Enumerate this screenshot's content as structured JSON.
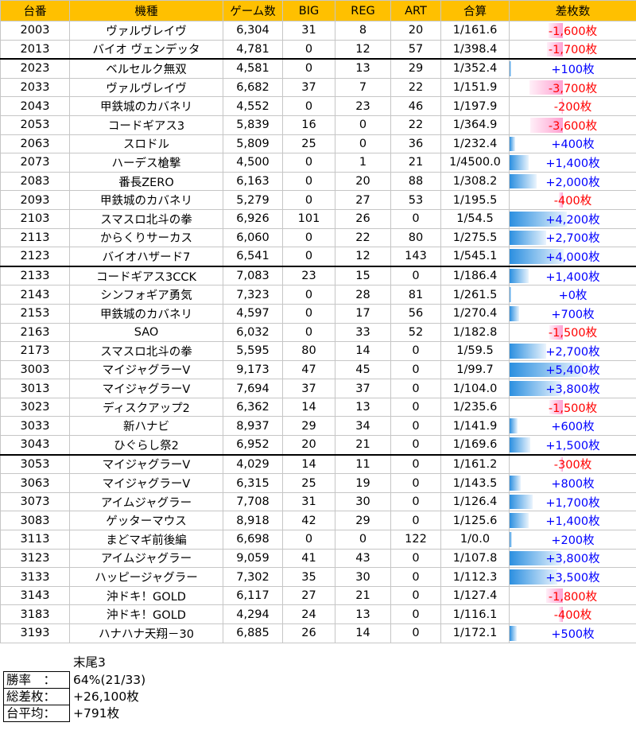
{
  "table": {
    "headers": [
      "台番",
      "機種",
      "ゲーム数",
      "BIG",
      "REG",
      "ART",
      "合算",
      "差枚数"
    ],
    "rows": [
      {
        "no": "2003",
        "machine": "ヴァルヴレイヴ",
        "games": "6,304",
        "big": "31",
        "reg": "8",
        "art": "20",
        "ratio": "1/161.6",
        "diff": "-1,600枚",
        "diff_value": -1600
      },
      {
        "no": "2013",
        "machine": "バイオ ヴェンデッタ",
        "games": "4,781",
        "big": "0",
        "reg": "12",
        "art": "57",
        "ratio": "1/398.4",
        "diff": "-1,700枚",
        "diff_value": -1700
      },
      {
        "no": "2023",
        "machine": "ベルセルク無双",
        "games": "4,581",
        "big": "0",
        "reg": "13",
        "art": "29",
        "ratio": "1/352.4",
        "diff": "+100枚",
        "diff_value": 100
      },
      {
        "no": "2033",
        "machine": "ヴァルヴレイヴ",
        "games": "6,682",
        "big": "37",
        "reg": "7",
        "art": "22",
        "ratio": "1/151.9",
        "diff": "-3,700枚",
        "diff_value": -3700
      },
      {
        "no": "2043",
        "machine": "甲鉄城のカバネリ",
        "games": "4,552",
        "big": "0",
        "reg": "23",
        "art": "46",
        "ratio": "1/197.9",
        "diff": "-200枚",
        "diff_value": -200
      },
      {
        "no": "2053",
        "machine": "コードギアス3",
        "games": "5,839",
        "big": "16",
        "reg": "0",
        "art": "22",
        "ratio": "1/364.9",
        "diff": "-3,600枚",
        "diff_value": -3600
      },
      {
        "no": "2063",
        "machine": "スロドル",
        "games": "5,809",
        "big": "25",
        "reg": "0",
        "art": "36",
        "ratio": "1/232.4",
        "diff": "+400枚",
        "diff_value": 400
      },
      {
        "no": "2073",
        "machine": "ハーデス槍撃",
        "games": "4,500",
        "big": "0",
        "reg": "1",
        "art": "21",
        "ratio": "1/4500.0",
        "diff": "+1,400枚",
        "diff_value": 1400
      },
      {
        "no": "2083",
        "machine": "番長ZERO",
        "games": "6,163",
        "big": "0",
        "reg": "20",
        "art": "88",
        "ratio": "1/308.2",
        "diff": "+2,000枚",
        "diff_value": 2000
      },
      {
        "no": "2093",
        "machine": "甲鉄城のカバネリ",
        "games": "5,279",
        "big": "0",
        "reg": "27",
        "art": "53",
        "ratio": "1/195.5",
        "diff": "-400枚",
        "diff_value": -400
      },
      {
        "no": "2103",
        "machine": "スマスロ北斗の拳",
        "games": "6,926",
        "big": "101",
        "reg": "26",
        "art": "0",
        "ratio": "1/54.5",
        "diff": "+4,200枚",
        "diff_value": 4200
      },
      {
        "no": "2113",
        "machine": "からくりサーカス",
        "games": "6,060",
        "big": "0",
        "reg": "22",
        "art": "80",
        "ratio": "1/275.5",
        "diff": "+2,700枚",
        "diff_value": 2700
      },
      {
        "no": "2123",
        "machine": "バイオハザード7",
        "games": "6,541",
        "big": "0",
        "reg": "12",
        "art": "143",
        "ratio": "1/545.1",
        "diff": "+4,000枚",
        "diff_value": 4000
      },
      {
        "no": "2133",
        "machine": "コードギアス3CCK",
        "games": "7,083",
        "big": "23",
        "reg": "15",
        "art": "0",
        "ratio": "1/186.4",
        "diff": "+1,400枚",
        "diff_value": 1400
      },
      {
        "no": "2143",
        "machine": "シンフォギア勇気",
        "games": "7,323",
        "big": "0",
        "reg": "28",
        "art": "81",
        "ratio": "1/261.5",
        "diff": "+0枚",
        "diff_value": 0
      },
      {
        "no": "2153",
        "machine": "甲鉄城のカバネリ",
        "games": "4,597",
        "big": "0",
        "reg": "17",
        "art": "56",
        "ratio": "1/270.4",
        "diff": "+700枚",
        "diff_value": 700
      },
      {
        "no": "2163",
        "machine": "SAO",
        "games": "6,032",
        "big": "0",
        "reg": "33",
        "art": "52",
        "ratio": "1/182.8",
        "diff": "-1,500枚",
        "diff_value": -1500
      },
      {
        "no": "2173",
        "machine": "スマスロ北斗の拳",
        "games": "5,595",
        "big": "80",
        "reg": "14",
        "art": "0",
        "ratio": "1/59.5",
        "diff": "+2,700枚",
        "diff_value": 2700
      },
      {
        "no": "3003",
        "machine": "マイジャグラーV",
        "games": "9,173",
        "big": "47",
        "reg": "45",
        "art": "0",
        "ratio": "1/99.7",
        "diff": "+5,400枚",
        "diff_value": 5400
      },
      {
        "no": "3013",
        "machine": "マイジャグラーV",
        "games": "7,694",
        "big": "37",
        "reg": "37",
        "art": "0",
        "ratio": "1/104.0",
        "diff": "+3,800枚",
        "diff_value": 3800
      },
      {
        "no": "3023",
        "machine": "ディスクアップ2",
        "games": "6,362",
        "big": "14",
        "reg": "13",
        "art": "0",
        "ratio": "1/235.6",
        "diff": "-1,500枚",
        "diff_value": -1500
      },
      {
        "no": "3033",
        "machine": "新ハナビ",
        "games": "8,937",
        "big": "29",
        "reg": "34",
        "art": "0",
        "ratio": "1/141.9",
        "diff": "+600枚",
        "diff_value": 600
      },
      {
        "no": "3043",
        "machine": "ひぐらし祭2",
        "games": "6,952",
        "big": "20",
        "reg": "21",
        "art": "0",
        "ratio": "1/169.6",
        "diff": "+1,500枚",
        "diff_value": 1500
      },
      {
        "no": "3053",
        "machine": "マイジャグラーV",
        "games": "4,029",
        "big": "14",
        "reg": "11",
        "art": "0",
        "ratio": "1/161.2",
        "diff": "-300枚",
        "diff_value": -300
      },
      {
        "no": "3063",
        "machine": "マイジャグラーV",
        "games": "6,315",
        "big": "25",
        "reg": "19",
        "art": "0",
        "ratio": "1/143.5",
        "diff": "+800枚",
        "diff_value": 800
      },
      {
        "no": "3073",
        "machine": "アイムジャグラー",
        "games": "7,708",
        "big": "31",
        "reg": "30",
        "art": "0",
        "ratio": "1/126.4",
        "diff": "+1,700枚",
        "diff_value": 1700
      },
      {
        "no": "3083",
        "machine": "ゲッターマウス",
        "games": "8,918",
        "big": "42",
        "reg": "29",
        "art": "0",
        "ratio": "1/125.6",
        "diff": "+1,400枚",
        "diff_value": 1400
      },
      {
        "no": "3113",
        "machine": "まどマギ前後編",
        "games": "6,698",
        "big": "0",
        "reg": "0",
        "art": "122",
        "ratio": "1/0.0",
        "diff": "+200枚",
        "diff_value": 200
      },
      {
        "no": "3123",
        "machine": "アイムジャグラー",
        "games": "9,059",
        "big": "41",
        "reg": "43",
        "art": "0",
        "ratio": "1/107.8",
        "diff": "+3,800枚",
        "diff_value": 3800
      },
      {
        "no": "3133",
        "machine": "ハッピージャグラー",
        "games": "7,302",
        "big": "35",
        "reg": "30",
        "art": "0",
        "ratio": "1/112.3",
        "diff": "+3,500枚",
        "diff_value": 3500
      },
      {
        "no": "3143",
        "machine": "沖ドキ！GOLD",
        "games": "6,117",
        "big": "27",
        "reg": "21",
        "art": "0",
        "ratio": "1/127.4",
        "diff": "-1,800枚",
        "diff_value": -1800
      },
      {
        "no": "3183",
        "machine": "沖ドキ！GOLD",
        "games": "4,294",
        "big": "24",
        "reg": "13",
        "art": "0",
        "ratio": "1/116.1",
        "diff": "-400枚",
        "diff_value": -400
      },
      {
        "no": "3193",
        "machine": "ハナハナ天翔－30",
        "games": "6,885",
        "big": "26",
        "reg": "14",
        "art": "0",
        "ratio": "1/172.1",
        "diff": "+500枚",
        "diff_value": 500
      }
    ]
  },
  "summary": {
    "tail_label": "末尾3",
    "items": [
      {
        "label": "勝率　：",
        "value": "64%(21/33)"
      },
      {
        "label": "総差枚：",
        "value": "+26,100枚"
      },
      {
        "label": "台平均：",
        "value": "+791枚"
      }
    ]
  }
}
